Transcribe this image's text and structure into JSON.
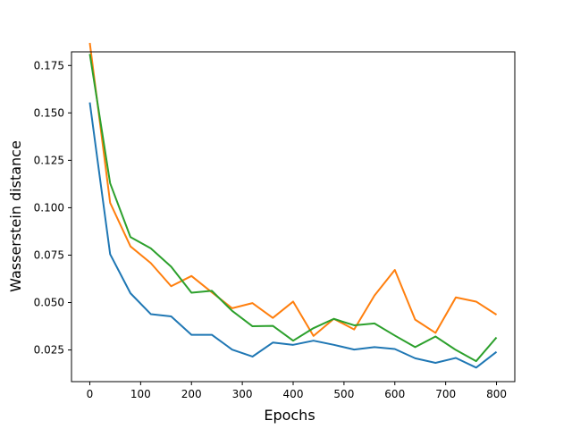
{
  "chart_data": {
    "type": "line",
    "title": "",
    "xlabel": "Epochs",
    "ylabel": "Wasserstein distance",
    "xlim": [
      -36,
      836
    ],
    "ylim": [
      0.0083,
      0.1822
    ],
    "xticks": [
      0,
      100,
      200,
      300,
      400,
      500,
      600,
      700,
      800
    ],
    "yticks": [
      0.025,
      0.05,
      0.075,
      0.1,
      0.125,
      0.15,
      0.175
    ],
    "ytick_labels": [
      "0.025",
      "0.050",
      "0.075",
      "0.100",
      "0.125",
      "0.150",
      "0.175"
    ],
    "grid": false,
    "legend": "none",
    "x": [
      0,
      40,
      80,
      120,
      160,
      200,
      240,
      280,
      320,
      360,
      400,
      440,
      480,
      520,
      560,
      600,
      640,
      680,
      720,
      760,
      800
    ],
    "series": [
      {
        "color": "#1f77b4",
        "values": [
          0.1555,
          0.0755,
          0.0549,
          0.0439,
          0.0427,
          0.033,
          0.033,
          0.0252,
          0.0215,
          0.0289,
          0.0277,
          0.0299,
          0.0277,
          0.0252,
          0.0265,
          0.0255,
          0.0206,
          0.0182,
          0.0208,
          0.0157,
          0.024
        ]
      },
      {
        "color": "#ff7f0e",
        "values": [
          0.1869,
          0.1026,
          0.0796,
          0.0708,
          0.0586,
          0.064,
          0.0554,
          0.047,
          0.0497,
          0.0419,
          0.0505,
          0.0324,
          0.0414,
          0.0358,
          0.0537,
          0.0672,
          0.041,
          0.034,
          0.0527,
          0.0505,
          0.0436
        ]
      },
      {
        "color": "#2ca02c",
        "values": [
          0.1811,
          0.1129,
          0.0845,
          0.0786,
          0.0689,
          0.0552,
          0.0562,
          0.0456,
          0.0375,
          0.0377,
          0.0299,
          0.0365,
          0.0414,
          0.038,
          0.039,
          0.0326,
          0.0265,
          0.0321,
          0.025,
          0.0191,
          0.0316
        ]
      }
    ]
  }
}
